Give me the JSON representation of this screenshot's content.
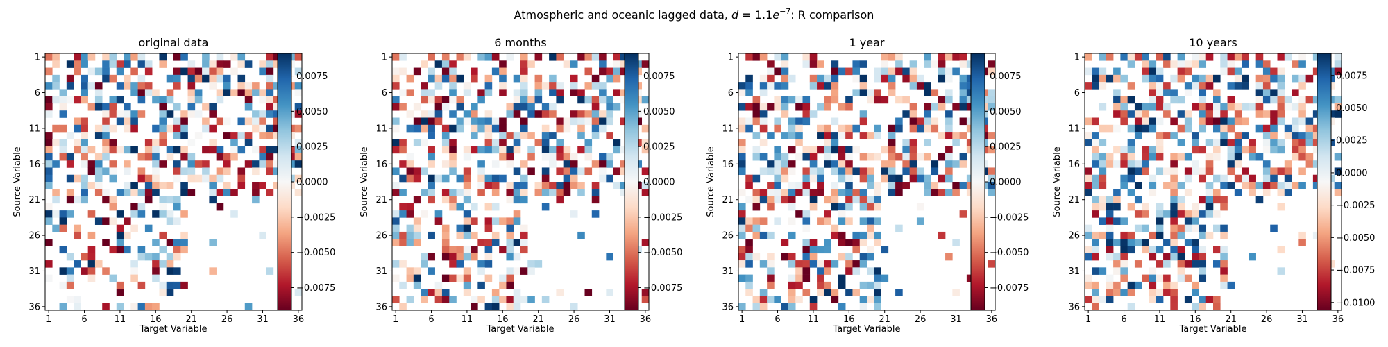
{
  "figure": {
    "title": "Atmospheric and oceanic lagged data, d = 1.1e−7: R comparison",
    "title_parts": {
      "before": "Atmospheric and oceanic lagged data, ",
      "d": "d",
      "eq": " = 1.1",
      "e": "e",
      "exp": "−7",
      "after": ": R comparison"
    }
  },
  "colormap": "RdBu (red = negative, white = zero, blue = positive)",
  "colors": {
    "neg_max": "#67001f",
    "neg_mid": "#d6604d",
    "neg_light": "#fddbc7",
    "zero": "#f7f7f7",
    "pos_light": "#d1e5f0",
    "pos_mid": "#4393c3",
    "pos_max": "#053061"
  },
  "chart_data": [
    {
      "type": "heatmap",
      "title": "original data",
      "xlabel": "Target Variable",
      "ylabel": "Source Variable",
      "x_ticks": [
        "1",
        "6",
        "11",
        "16",
        "21",
        "26",
        "31",
        "36"
      ],
      "y_ticks": [
        "1",
        "6",
        "11",
        "16",
        "21",
        "26",
        "31",
        "36"
      ],
      "grid_size": 36,
      "colorbar": {
        "vmin": -0.0091,
        "vmax": 0.0091,
        "ticks": [
          "0.0075",
          "0.0050",
          "0.0025",
          "0.0000",
          "−0.0025",
          "−0.0050",
          "−0.0075"
        ],
        "tick_values": [
          0.0075,
          0.005,
          0.0025,
          0,
          -0.0025,
          -0.005,
          -0.0075
        ]
      },
      "seed": 11,
      "note": "36×36 grid of R values; most cells near zero/white, dense colored structure in the upper half"
    },
    {
      "type": "heatmap",
      "title": "6 months",
      "xlabel": "Target Variable",
      "ylabel": "Source Variable",
      "x_ticks": [
        "1",
        "6",
        "11",
        "16",
        "21",
        "26",
        "31",
        "36"
      ],
      "y_ticks": [
        "1",
        "6",
        "11",
        "16",
        "21",
        "26",
        "31",
        "36"
      ],
      "grid_size": 36,
      "colorbar": {
        "vmin": -0.0091,
        "vmax": 0.0091,
        "ticks": [
          "0.0075",
          "0.0050",
          "0.0025",
          "0.0000",
          "−0.0025",
          "−0.0050",
          "−0.0075"
        ],
        "tick_values": [
          0.0075,
          0.005,
          0.0025,
          0,
          -0.0025,
          -0.005,
          -0.0075
        ]
      },
      "seed": 23
    },
    {
      "type": "heatmap",
      "title": "1 year",
      "xlabel": "Target Variable",
      "ylabel": "Source Variable",
      "x_ticks": [
        "1",
        "6",
        "11",
        "16",
        "21",
        "26",
        "31",
        "36"
      ],
      "y_ticks": [
        "1",
        "6",
        "11",
        "16",
        "21",
        "26",
        "31",
        "36"
      ],
      "grid_size": 36,
      "colorbar": {
        "vmin": -0.0091,
        "vmax": 0.0091,
        "ticks": [
          "0.0075",
          "0.0050",
          "0.0025",
          "0.0000",
          "−0.0025",
          "−0.0050",
          "−0.0075"
        ],
        "tick_values": [
          0.0075,
          0.005,
          0.0025,
          0,
          -0.0025,
          -0.005,
          -0.0075
        ]
      },
      "seed": 37
    },
    {
      "type": "heatmap",
      "title": "10 years",
      "xlabel": "Target Variable",
      "ylabel": "Source Variable",
      "x_ticks": [
        "1",
        "6",
        "11",
        "16",
        "21",
        "26",
        "31",
        "36"
      ],
      "y_ticks": [
        "1",
        "6",
        "11",
        "16",
        "21",
        "26",
        "31",
        "36"
      ],
      "grid_size": 36,
      "colorbar": {
        "vmin": -0.0106,
        "vmax": 0.0092,
        "ticks": [
          "0.0075",
          "0.0050",
          "0.0025",
          "0.0000",
          "−0.0025",
          "−0.0050",
          "−0.0075",
          "−0.0100"
        ],
        "tick_values": [
          0.0075,
          0.005,
          0.0025,
          0,
          -0.0025,
          -0.005,
          -0.0075,
          -0.01
        ]
      },
      "seed": 53
    }
  ]
}
